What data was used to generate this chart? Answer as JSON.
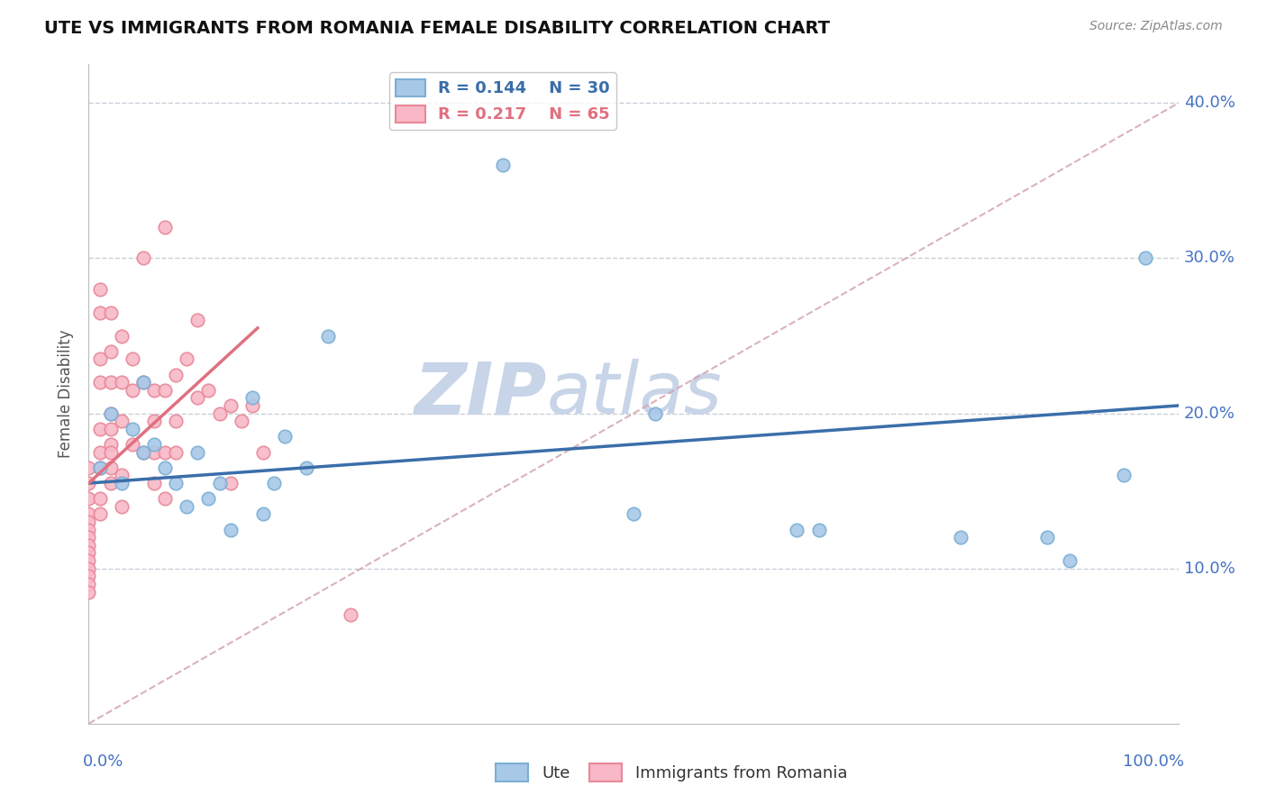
{
  "title": "UTE VS IMMIGRANTS FROM ROMANIA FEMALE DISABILITY CORRELATION CHART",
  "source": "Source: ZipAtlas.com",
  "ylabel": "Female Disability",
  "legend_r1": "R = 0.144",
  "legend_n1": "N = 30",
  "legend_r2": "R = 0.217",
  "legend_n2": "N = 65",
  "color_ute": "#A8C8E8",
  "color_ute_edge": "#7BAFD4",
  "color_romania": "#F8B8C8",
  "color_romania_edge": "#E88898",
  "color_ute_line": "#3A6EAA",
  "color_romania_line": "#E07080",
  "color_diag": "#D0A0A8",
  "watermark_zip": "ZIP",
  "watermark_atlas": "atlas",
  "watermark_color": "#C8D4E8",
  "grid_color": "#C8D0D8",
  "tick_color": "#4472C4",
  "background_color": "#FFFFFF",
  "ute_x": [
    0.01,
    0.02,
    0.03,
    0.04,
    0.05,
    0.05,
    0.06,
    0.07,
    0.08,
    0.09,
    0.1,
    0.11,
    0.12,
    0.13,
    0.15,
    0.16,
    0.17,
    0.18,
    0.2,
    0.22,
    0.38,
    0.5,
    0.52,
    0.65,
    0.67,
    0.8,
    0.88,
    0.9,
    0.95,
    0.97
  ],
  "ute_y": [
    0.165,
    0.2,
    0.155,
    0.19,
    0.175,
    0.22,
    0.18,
    0.165,
    0.155,
    0.14,
    0.175,
    0.145,
    0.155,
    0.125,
    0.21,
    0.135,
    0.155,
    0.185,
    0.165,
    0.25,
    0.36,
    0.135,
    0.2,
    0.125,
    0.125,
    0.12,
    0.12,
    0.105,
    0.16,
    0.3
  ],
  "romania_x": [
    0.0,
    0.0,
    0.0,
    0.0,
    0.0,
    0.0,
    0.0,
    0.0,
    0.0,
    0.0,
    0.0,
    0.0,
    0.0,
    0.0,
    0.01,
    0.01,
    0.01,
    0.01,
    0.01,
    0.01,
    0.01,
    0.01,
    0.01,
    0.02,
    0.02,
    0.02,
    0.02,
    0.02,
    0.02,
    0.02,
    0.02,
    0.02,
    0.03,
    0.03,
    0.03,
    0.03,
    0.03,
    0.04,
    0.04,
    0.04,
    0.05,
    0.05,
    0.05,
    0.06,
    0.06,
    0.06,
    0.06,
    0.07,
    0.07,
    0.07,
    0.07,
    0.08,
    0.08,
    0.08,
    0.09,
    0.1,
    0.1,
    0.11,
    0.12,
    0.13,
    0.13,
    0.14,
    0.15,
    0.16,
    0.24
  ],
  "romania_y": [
    0.165,
    0.155,
    0.145,
    0.135,
    0.13,
    0.125,
    0.12,
    0.115,
    0.11,
    0.105,
    0.1,
    0.095,
    0.09,
    0.085,
    0.28,
    0.265,
    0.235,
    0.22,
    0.19,
    0.175,
    0.165,
    0.145,
    0.135,
    0.265,
    0.24,
    0.22,
    0.2,
    0.19,
    0.18,
    0.175,
    0.165,
    0.155,
    0.25,
    0.22,
    0.195,
    0.16,
    0.14,
    0.235,
    0.215,
    0.18,
    0.3,
    0.22,
    0.175,
    0.215,
    0.195,
    0.175,
    0.155,
    0.32,
    0.215,
    0.175,
    0.145,
    0.225,
    0.195,
    0.175,
    0.235,
    0.26,
    0.21,
    0.215,
    0.2,
    0.205,
    0.155,
    0.195,
    0.205,
    0.175,
    0.07
  ],
  "xlim": [
    0.0,
    1.0
  ],
  "ylim": [
    0.0,
    0.425
  ],
  "y_ticks": [
    0.1,
    0.2,
    0.3,
    0.4
  ],
  "y_tick_labels": [
    "10.0%",
    "20.0%",
    "30.0%",
    "40.0%"
  ],
  "x_left_label": "0.0%",
  "x_right_label": "100.0%",
  "ute_line_y0": 0.155,
  "ute_line_y1": 0.205,
  "romania_line_x0": 0.0,
  "romania_line_y0": 0.155,
  "romania_line_x1": 0.155,
  "romania_line_y1": 0.255
}
